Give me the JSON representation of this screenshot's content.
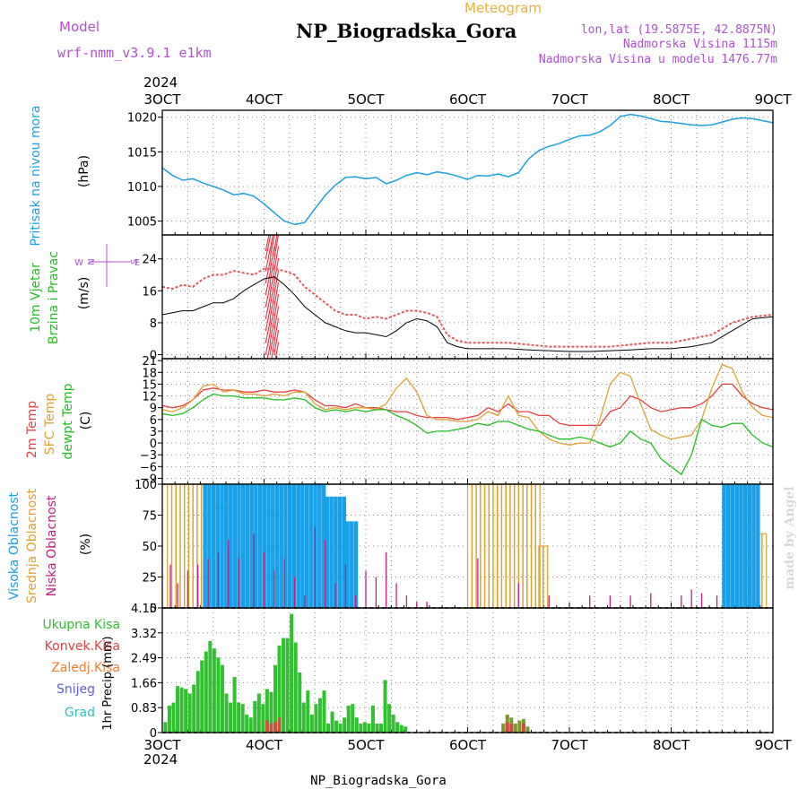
{
  "header": {
    "model_label": "Model",
    "model_name": "wrf-nmm_v3.9.1 e1km",
    "product": "Meteogram",
    "station": "NP_Biogradska_Gora",
    "lonlat": "lon,lat (19.5875E, 42.8875N)",
    "elevation": "Nadmorska Visina 1115m",
    "model_elevation": "Nadmorska Visina u modelu 1476.77m"
  },
  "footer": {
    "station": "NP_Biogradska_Gora",
    "credit": "made by Angel"
  },
  "time_axis": {
    "year": "2024",
    "labels": [
      "3OCT",
      "4OCT",
      "5OCT",
      "6OCT",
      "7OCT",
      "8OCT",
      "9OCT"
    ]
  },
  "colors": {
    "pressure": "#1ca0e0",
    "wind": "#22c022",
    "wind_speed_line": "#000000",
    "gust": "#e05a5a",
    "t2m": "#e84040",
    "sfc": "#e0a030",
    "dewpt": "#20c020",
    "high_cloud": "#18a0e8",
    "mid_cloud": "#e0a030",
    "low_cloud": "#c02080",
    "total_precip": "#30c030",
    "conv_precip": "#e04040",
    "frozen": "#f08030",
    "snow": "#6060e0",
    "hail": "#30c0c0",
    "header_purple": "#b050d0",
    "header_gold": "#e8b040"
  },
  "chart_data": [
    {
      "type": "line",
      "title": "",
      "ylabel": "Pritisak na nivou mora",
      "unit": "(hPa)",
      "ylim": [
        1003,
        1021
      ],
      "yticks": [
        1005,
        1010,
        1015,
        1020
      ],
      "x": [
        0,
        0.1,
        0.2,
        0.3,
        0.4,
        0.5,
        0.6,
        0.7,
        0.8,
        0.9,
        1.0,
        1.1,
        1.2,
        1.3,
        1.4,
        1.5,
        1.6,
        1.7,
        1.8,
        1.9,
        2.0,
        2.1,
        2.2,
        2.3,
        2.4,
        2.5,
        2.6,
        2.7,
        2.8,
        2.9,
        3.0,
        3.1,
        3.2,
        3.3,
        3.4,
        3.5,
        3.6,
        3.7,
        3.8,
        3.9,
        4.0,
        4.1,
        4.2,
        4.3,
        4.4,
        4.5,
        4.6,
        4.7,
        4.8,
        4.9,
        5.0,
        5.1,
        5.2,
        5.3,
        5.4,
        5.5,
        5.6,
        5.7,
        5.8,
        5.9,
        6.0
      ],
      "y": [
        1012.7,
        1011.6,
        1010.9,
        1011.1,
        1010.5,
        1010.0,
        1009.5,
        1008.8,
        1009.0,
        1008.6,
        1007.5,
        1006.2,
        1005.0,
        1004.5,
        1004.8,
        1006.8,
        1008.7,
        1010.2,
        1011.3,
        1011.4,
        1011.1,
        1011.3,
        1010.4,
        1010.9,
        1011.6,
        1012.0,
        1011.7,
        1012.1,
        1011.9,
        1011.5,
        1011.0,
        1011.6,
        1011.5,
        1011.8,
        1011.4,
        1012.0,
        1014.0,
        1015.2,
        1015.8,
        1016.2,
        1016.8,
        1017.3,
        1017.4,
        1017.9,
        1018.8,
        1020.1,
        1020.4,
        1020.2,
        1019.8,
        1019.4,
        1019.3,
        1019.1,
        1018.9,
        1018.8,
        1018.9,
        1019.3,
        1019.7,
        1019.9,
        1019.8,
        1019.5,
        1019.2
      ]
    },
    {
      "type": "line",
      "title": "",
      "ylabel": "10m Vjetar Brzina i Pravac",
      "unit": "(m/s)",
      "ylim": [
        -1,
        30
      ],
      "yticks": [
        0,
        8,
        16,
        24
      ],
      "compass": [
        "N",
        "E",
        "S",
        "W"
      ],
      "series": [
        {
          "role": "speed",
          "x": [
            0,
            0.1,
            0.2,
            0.3,
            0.4,
            0.5,
            0.6,
            0.7,
            0.8,
            0.9,
            1.0,
            1.1,
            1.2,
            1.3,
            1.4,
            1.5,
            1.6,
            1.7,
            1.8,
            1.9,
            2.0,
            2.1,
            2.2,
            2.3,
            2.4,
            2.5,
            2.6,
            2.7,
            2.8,
            2.9,
            3.0,
            3.2,
            3.4,
            3.6,
            3.8,
            4.0,
            4.2,
            4.4,
            4.6,
            4.8,
            5.0,
            5.2,
            5.4,
            5.6,
            5.8,
            6.0
          ],
          "y": [
            10,
            10.5,
            11,
            11,
            12,
            13,
            13,
            14,
            16,
            17.5,
            19,
            19.5,
            17.5,
            15,
            12,
            10,
            8,
            7,
            6,
            5.5,
            5.5,
            5,
            4.5,
            6,
            8,
            9,
            8.5,
            7,
            3,
            2,
            1.5,
            1.5,
            1.5,
            1.2,
            1.0,
            0.8,
            0.8,
            1.0,
            1.2,
            1.5,
            1.5,
            2,
            3,
            6,
            9,
            9.5
          ]
        },
        {
          "role": "gust",
          "x": [
            0,
            0.1,
            0.2,
            0.3,
            0.4,
            0.5,
            0.6,
            0.7,
            0.8,
            0.9,
            1.0,
            1.1,
            1.2,
            1.3,
            1.4,
            1.5,
            1.6,
            1.7,
            1.8,
            1.9,
            2.0,
            2.1,
            2.2,
            2.3,
            2.4,
            2.5,
            2.6,
            2.7,
            2.8,
            2.9,
            3.0,
            3.2,
            3.4,
            3.6,
            3.8,
            4.0,
            4.2,
            4.4,
            4.6,
            4.8,
            5.0,
            5.2,
            5.4,
            5.6,
            5.8,
            6.0
          ],
          "y": [
            17,
            16.5,
            17.5,
            17,
            19,
            20,
            20,
            21,
            20.5,
            20,
            21.5,
            21.5,
            21,
            20,
            17,
            15,
            13,
            11,
            10,
            10,
            9,
            9.5,
            9,
            10,
            11,
            11,
            10.5,
            9.5,
            5,
            3.5,
            3,
            3,
            3,
            2.5,
            2,
            2,
            2,
            2,
            2.5,
            3,
            3,
            4,
            5,
            8,
            9.5,
            10
          ]
        }
      ]
    },
    {
      "type": "line",
      "title": "",
      "ylabel": "2m Temp / SFC Temp / dewpt Temp",
      "unit": "(C)",
      "ylim": [
        -10.5,
        21.5
      ],
      "yticks": [
        -9,
        -6,
        -3,
        0,
        3,
        6,
        9,
        12,
        15,
        18,
        21
      ],
      "x": [
        0,
        0.1,
        0.2,
        0.3,
        0.4,
        0.5,
        0.6,
        0.7,
        0.8,
        0.9,
        1.0,
        1.1,
        1.2,
        1.3,
        1.4,
        1.5,
        1.6,
        1.7,
        1.8,
        1.9,
        2.0,
        2.1,
        2.2,
        2.3,
        2.4,
        2.5,
        2.6,
        2.7,
        2.8,
        2.9,
        3.0,
        3.1,
        3.2,
        3.3,
        3.4,
        3.5,
        3.6,
        3.7,
        3.8,
        3.9,
        4.0,
        4.1,
        4.2,
        4.3,
        4.4,
        4.5,
        4.6,
        4.7,
        4.8,
        4.9,
        5.0,
        5.1,
        5.2,
        5.3,
        5.4,
        5.5,
        5.6,
        5.7,
        5.8,
        5.9,
        6.0
      ],
      "series": [
        {
          "name": "2m Temp",
          "role": "t2m",
          "y": [
            9.5,
            9.0,
            9.5,
            11,
            13.5,
            14,
            13.5,
            13.5,
            13,
            13,
            13.5,
            13,
            13,
            13.5,
            13,
            11,
            9.5,
            9.5,
            9,
            10,
            9,
            9,
            8.5,
            8,
            8,
            7,
            6.5,
            6.5,
            6.5,
            6,
            6.5,
            7,
            9,
            8,
            10,
            8,
            8,
            7,
            7,
            5,
            4.5,
            4.5,
            4.5,
            4.5,
            8,
            9,
            12,
            11,
            9,
            8,
            8.5,
            9,
            9,
            10,
            12,
            15,
            15,
            12,
            10,
            9,
            8.5
          ]
        },
        {
          "name": "SFC Temp",
          "role": "sfc",
          "y": [
            8.5,
            8,
            9,
            11,
            14.5,
            15,
            13,
            13.5,
            12.5,
            12.5,
            12,
            12.5,
            12,
            13,
            13,
            10,
            8.5,
            9,
            8.5,
            9,
            9,
            8.5,
            10,
            14,
            16.5,
            13,
            7,
            6,
            6,
            5.5,
            5.5,
            6,
            8,
            7,
            12,
            7,
            6.5,
            3,
            1,
            0,
            -0.5,
            0,
            0,
            6,
            15,
            18,
            17,
            10,
            3.5,
            2,
            1,
            1.5,
            2,
            6,
            14,
            20,
            19,
            13,
            9,
            7,
            6.5
          ]
        },
        {
          "name": "dewpt Temp",
          "role": "dewpt",
          "y": [
            7.5,
            7,
            7.5,
            9,
            11,
            12.5,
            12,
            12,
            11.5,
            11.5,
            11.5,
            11,
            11,
            11.5,
            11,
            9,
            8,
            8.5,
            8,
            8.5,
            8,
            8.5,
            8.5,
            7,
            6,
            4.5,
            2.5,
            3,
            3,
            3.5,
            4,
            5,
            4.5,
            5.5,
            5.5,
            4.5,
            3.5,
            3,
            2,
            1,
            1,
            1.5,
            1,
            0,
            -1,
            0,
            3,
            1,
            0,
            -4,
            -6,
            -8,
            -3,
            6,
            4.5,
            4,
            5,
            5,
            2,
            0,
            -1
          ]
        }
      ]
    },
    {
      "type": "bar",
      "title": "",
      "ylabel": "Visoka Oblacnost / Srednja Oblacnost / Niska Oblacnost",
      "unit": "(%)",
      "ylim": [
        0,
        100
      ],
      "yticks": [
        0,
        25,
        50,
        75,
        100
      ],
      "series": [
        {
          "name": "Visoka Oblacnost",
          "role": "high",
          "segments": [
            [
              0.4,
              1.6,
              100
            ],
            [
              1.6,
              1.8,
              90
            ],
            [
              1.8,
              1.9,
              70
            ],
            [
              5.5,
              5.85,
              100
            ]
          ]
        },
        {
          "name": "Srednja Oblacnost",
          "role": "mid",
          "segments": [
            [
              0.05,
              0.5,
              100
            ],
            [
              0.5,
              0.65,
              80
            ],
            [
              3.0,
              3.7,
              100
            ],
            [
              3.7,
              3.75,
              50
            ],
            [
              5.85,
              5.92,
              60
            ]
          ]
        },
        {
          "name": "Niska Oblacnost",
          "role": "low",
          "x": [
            0.08,
            0.15,
            0.25,
            0.35,
            0.45,
            0.55,
            0.65,
            0.75,
            0.9,
            1.0,
            1.1,
            1.2,
            1.3,
            1.4,
            1.5,
            1.6,
            1.7,
            1.8,
            1.9,
            2.0,
            2.1,
            2.2,
            2.3,
            2.4,
            2.5,
            2.6,
            3.1,
            3.5,
            3.8,
            4.2,
            4.4,
            4.6,
            4.8,
            5.1,
            5.2,
            5.3,
            5.45
          ],
          "y": [
            35,
            20,
            30,
            35,
            40,
            45,
            55,
            40,
            60,
            45,
            30,
            40,
            25,
            10,
            65,
            55,
            20,
            35,
            10,
            30,
            25,
            45,
            20,
            10,
            5,
            5,
            40,
            20,
            10,
            10,
            10,
            10,
            12,
            10,
            15,
            12,
            10
          ]
        }
      ]
    },
    {
      "type": "bar",
      "title": "",
      "ylabel": "1hr Precip",
      "unit": "(mm)",
      "ylim": [
        0,
        4.15
      ],
      "yticks": [
        0,
        0.83,
        1.66,
        2.49,
        3.32,
        4.15
      ],
      "series": [
        {
          "name": "Ukupna Kisa",
          "role": "total",
          "x": [
            0.03,
            0.07,
            0.11,
            0.15,
            0.19,
            0.23,
            0.27,
            0.31,
            0.35,
            0.39,
            0.43,
            0.47,
            0.51,
            0.55,
            0.59,
            0.63,
            0.67,
            0.71,
            0.75,
            0.79,
            0.83,
            0.87,
            0.91,
            0.95,
            0.99,
            1.03,
            1.07,
            1.11,
            1.15,
            1.19,
            1.23,
            1.27,
            1.31,
            1.35,
            1.39,
            1.43,
            1.47,
            1.51,
            1.55,
            1.59,
            1.63,
            1.67,
            1.71,
            1.75,
            1.79,
            1.83,
            1.87,
            1.91,
            1.95,
            1.99,
            2.03,
            2.07,
            2.11,
            2.15,
            2.19,
            2.23,
            2.27,
            2.31,
            2.35,
            2.39,
            3.35,
            3.39,
            3.43,
            3.47,
            3.51,
            3.55,
            3.59
          ],
          "y": [
            0.35,
            0.9,
            1.0,
            1.55,
            1.5,
            1.45,
            1.3,
            1.6,
            2.05,
            2.4,
            2.7,
            3.05,
            2.8,
            2.5,
            2.25,
            1.3,
            1.0,
            1.85,
            1.0,
            0.95,
            0.6,
            0.5,
            1.05,
            1.3,
            0.95,
            1.45,
            1.35,
            2.25,
            2.9,
            3.15,
            3.15,
            3.95,
            3.0,
            2.0,
            1.0,
            1.4,
            0.6,
            0.95,
            1.15,
            1.4,
            0.3,
            0.7,
            0.4,
            0.3,
            0.5,
            0.9,
            0.95,
            0.5,
            0.3,
            0.35,
            0.3,
            0.9,
            0.3,
            0.3,
            1.75,
            0.95,
            0.6,
            0.35,
            0.25,
            0.2,
            0.3,
            0.6,
            0.5,
            0.3,
            0.4,
            0.45,
            0.2
          ]
        },
        {
          "name": "Konvek.Kisa",
          "role": "conv",
          "x": [
            1.03,
            1.07,
            1.11,
            1.15,
            3.39,
            3.43,
            3.55
          ],
          "y": [
            0.4,
            0.3,
            0.35,
            0.5,
            0.35,
            0.3,
            0.3
          ]
        }
      ],
      "legend": [
        "Ukupna Kisa",
        "Konvek.Kisa",
        "Zaledj.Kisa",
        "Snijeg",
        "Grad"
      ]
    }
  ]
}
